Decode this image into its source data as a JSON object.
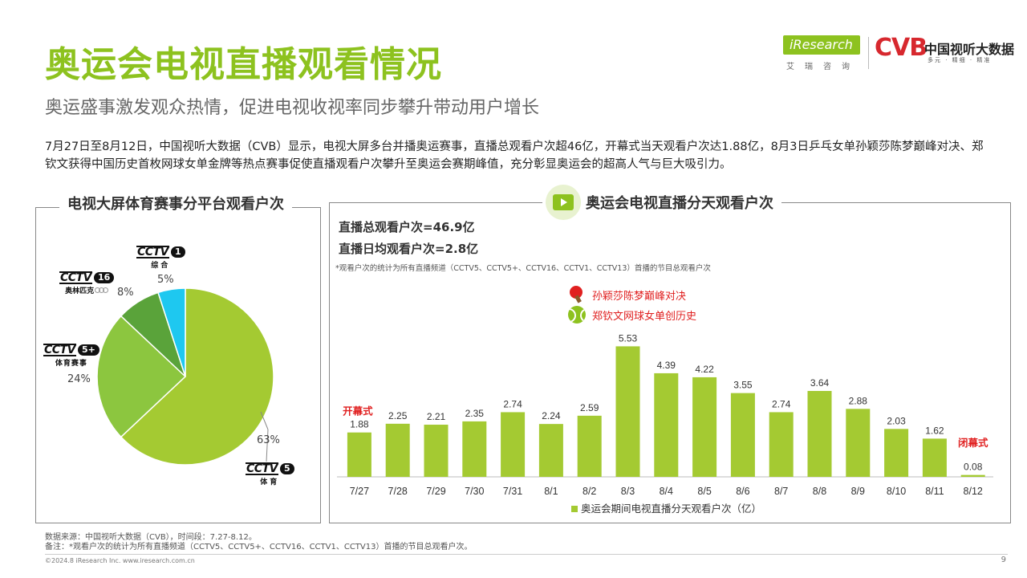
{
  "header": {
    "title": "奥运会电视直播观看情况",
    "subtitle": "奥运盛事激发观众热情，促进电视收视率同步攀升带动用户增长",
    "intro": "7月27日至8月12日，中国视听大数据（CVB）显示，电视大屏多台并播奥运赛事，直播总观看户次超46亿，开幕式当天观看户次达1.88亿，8月3日乒乓女单孙颖莎陈梦巅峰对决、郑钦文获得中国历史首枚网球女单金牌等热点赛事促使直播观看户次攀升至奥运会赛期峰值，充分彰显奥运会的超高人气与巨大吸引力。"
  },
  "logos": {
    "iresearch": "iResearch",
    "iresearch_cn": "艾瑞咨询",
    "cvb": "CVB",
    "cvb_name": "中国视听大数据",
    "cvb_slogan": "多元 · 精细 · 精准"
  },
  "left_panel": {
    "heading": "电视大屏体育赛事分平台观看户次",
    "channels": [
      {
        "cctv": "CCTV",
        "num": "1",
        "sub": "综合",
        "pct": "5%"
      },
      {
        "cctv": "CCTV",
        "num": "16",
        "sub": "奥林匹克",
        "pct": "8%"
      },
      {
        "cctv": "CCTV",
        "num": "5+",
        "sub": "体育赛事",
        "pct": "24%"
      },
      {
        "cctv": "CCTV",
        "num": "5",
        "sub": "体育",
        "pct": "63%"
      }
    ]
  },
  "right_panel": {
    "heading": "奥运会电视直播分天观看户次",
    "stat_total": "直播总观看户次=46.9亿",
    "stat_daily": "直播日均观看户次=2.8亿",
    "note": "*观看户次的统计为所有直播频道（CCTV5、CCTV5+、CCTV16、CCTV1、CCTV13）首播的节目总观看户次",
    "annotation_pingpong": "孙颖莎陈梦巅峰对决",
    "annotation_tennis": "郑钦文网球女单创历史",
    "label_opening": "开幕式",
    "label_closing": "闭幕式"
  },
  "colors": {
    "green": "#8dc21f",
    "bar": "#a4ca32",
    "pie_cctv5": "#a4ca32",
    "pie_cctv5plus": "#8cc63f",
    "pie_cctv16": "#5aa33a",
    "pie_cctv1": "#1ec8f0",
    "red": "#e02020"
  },
  "chart_data": [
    {
      "type": "pie",
      "title": "电视大屏体育赛事分平台观看户次",
      "categories": [
        "CCTV5 体育",
        "CCTV5+ 体育赛事",
        "CCTV16 奥林匹克",
        "CCTV1 综合"
      ],
      "values": [
        63,
        24,
        8,
        5
      ],
      "labels": [
        "63%",
        "24%",
        "8%",
        "5%"
      ]
    },
    {
      "type": "bar",
      "title": "奥运会电视直播分天观看户次",
      "categories": [
        "7/27",
        "7/28",
        "7/29",
        "7/30",
        "7/31",
        "8/1",
        "8/2",
        "8/3",
        "8/4",
        "8/5",
        "8/6",
        "8/7",
        "8/8",
        "8/9",
        "8/10",
        "8/11",
        "8/12"
      ],
      "series": [
        {
          "name": "奥运会期间电视直播分天观看户次（亿）",
          "values": [
            1.88,
            2.25,
            2.21,
            2.35,
            2.74,
            2.24,
            2.59,
            5.53,
            4.39,
            4.22,
            3.55,
            2.74,
            3.64,
            2.88,
            2.03,
            1.62,
            0.08
          ]
        }
      ],
      "value_labels": [
        "1.88",
        "2.25",
        "2.21",
        "2.35",
        "2.74",
        "2.24",
        "2.59",
        "5.53",
        "4.39",
        "4.22",
        "3.55",
        "2.74",
        "3.64",
        "2.88",
        "2.03",
        "1.62",
        "0.08"
      ],
      "legend": "bottom"
    }
  ],
  "footer": {
    "source": "数据来源：中国视听大数据（CVB），时间段：7.27-8.12。",
    "remark": "备注：*观看户次的统计为所有直播频道（CCTV5、CCTV5+、CCTV16、CCTV1、CCTV13）首播的节目总观看户次。",
    "copyright": "©2024.8 iResearch Inc. www.iresearch.com.cn",
    "page": "9"
  }
}
